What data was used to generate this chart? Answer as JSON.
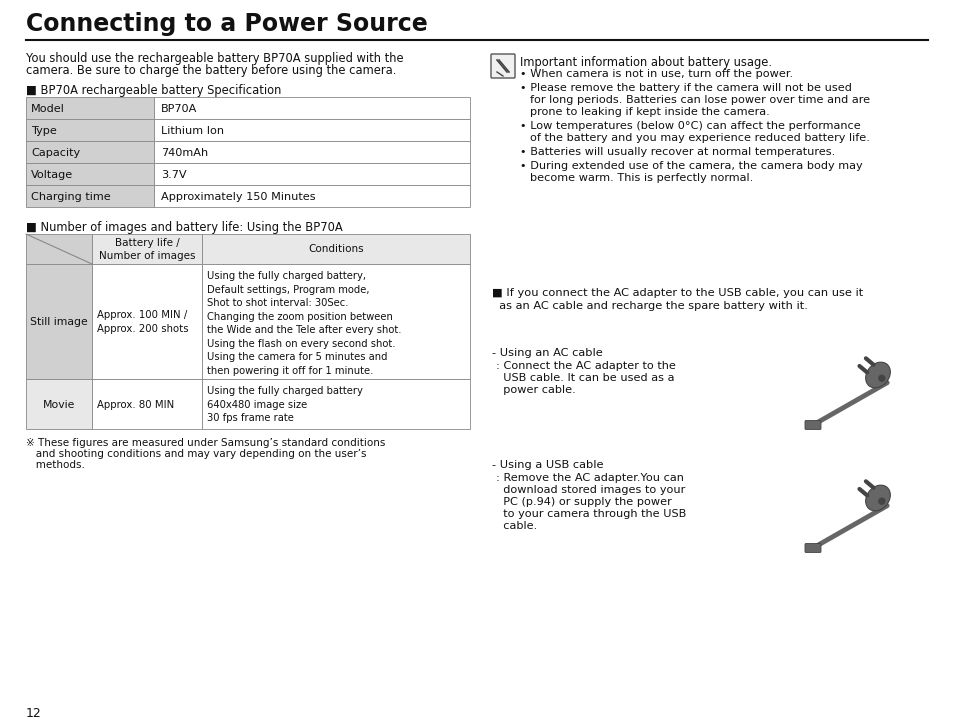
{
  "title": "Connecting to a Power Source",
  "bg_color": "#ffffff",
  "text_color": "#111111",
  "intro_line1": "You should use the rechargeable battery BP70A supplied with the",
  "intro_line2": "camera. Be sure to charge the battery before using the camera.",
  "spec_section_title": "■ BP70A rechargeable battery Specification",
  "spec_table": [
    [
      "Model",
      "BP70A"
    ],
    [
      "Type",
      "Lithium Ion"
    ],
    [
      "Capacity",
      "740mAh"
    ],
    [
      "Voltage",
      "3.7V"
    ],
    [
      "Charging time",
      "Approximately 150 Minutes"
    ]
  ],
  "battery_section_title": "■ Number of images and battery life: Using the BP70A",
  "still_image_life": "Approx. 100 MIN /\nApprox. 200 shots",
  "still_image_conditions": "Using the fully charged battery,\nDefault settings, Program mode,\nShot to shot interval: 30Sec.\nChanging the zoom position between\nthe Wide and the Tele after every shot.\nUsing the flash on every second shot.\nUsing the camera for 5 minutes and\nthen powering it off for 1 minute.",
  "movie_life": "Approx. 80 MIN",
  "movie_conditions": "Using the fully charged battery\n640x480 image size\n30 fps frame rate",
  "footnote_line1": "※ These figures are measured under Samsung’s standard conditions",
  "footnote_line2": "   and shooting conditions and may vary depending on the user’s",
  "footnote_line3": "   methods.",
  "page_num": "12",
  "note_title": "Important information about battery usage.",
  "bullet1": "When camera is not in use, turn off the power.",
  "bullet2a": "Please remove the battery if the camera will not be used",
  "bullet2b": "for long periods. Batteries can lose power over time and are",
  "bullet2c": "prone to leaking if kept inside the camera.",
  "bullet3a": "Low temperatures (below 0°C) can affect the performance",
  "bullet3b": "of the battery and you may experience reduced battery life.",
  "bullet4": "Batteries will usually recover at normal temperatures.",
  "bullet5a": "During extended use of the camera, the camera body may",
  "bullet5b": "become warm. This is perfectly normal.",
  "adapter_text1": "■ If you connect the AC adapter to the USB cable, you can use it",
  "adapter_text2": "  as an AC cable and recharge the spare battery with it.",
  "ac_title": "- Using an AC cable",
  "ac_line1": ": Connect the AC adapter to the",
  "ac_line2": "  USB cable. It can be used as a",
  "ac_line3": "  power cable.",
  "usb_title": "- Using a USB cable",
  "usb_line1": ": Remove the AC adapter.You can",
  "usb_line2": "  download stored images to your",
  "usb_line3": "  PC (p.94) or supply the power",
  "usb_line4": "  to your camera through the USB",
  "usb_line5": "  cable.",
  "gray_light": "#d0d0d0",
  "gray_header": "#c8c8c8",
  "cell_bg": "#e8e8e8",
  "border_color": "#888888",
  "plug_color": "#666666",
  "plug_dark": "#444444",
  "plug_light": "#999999"
}
